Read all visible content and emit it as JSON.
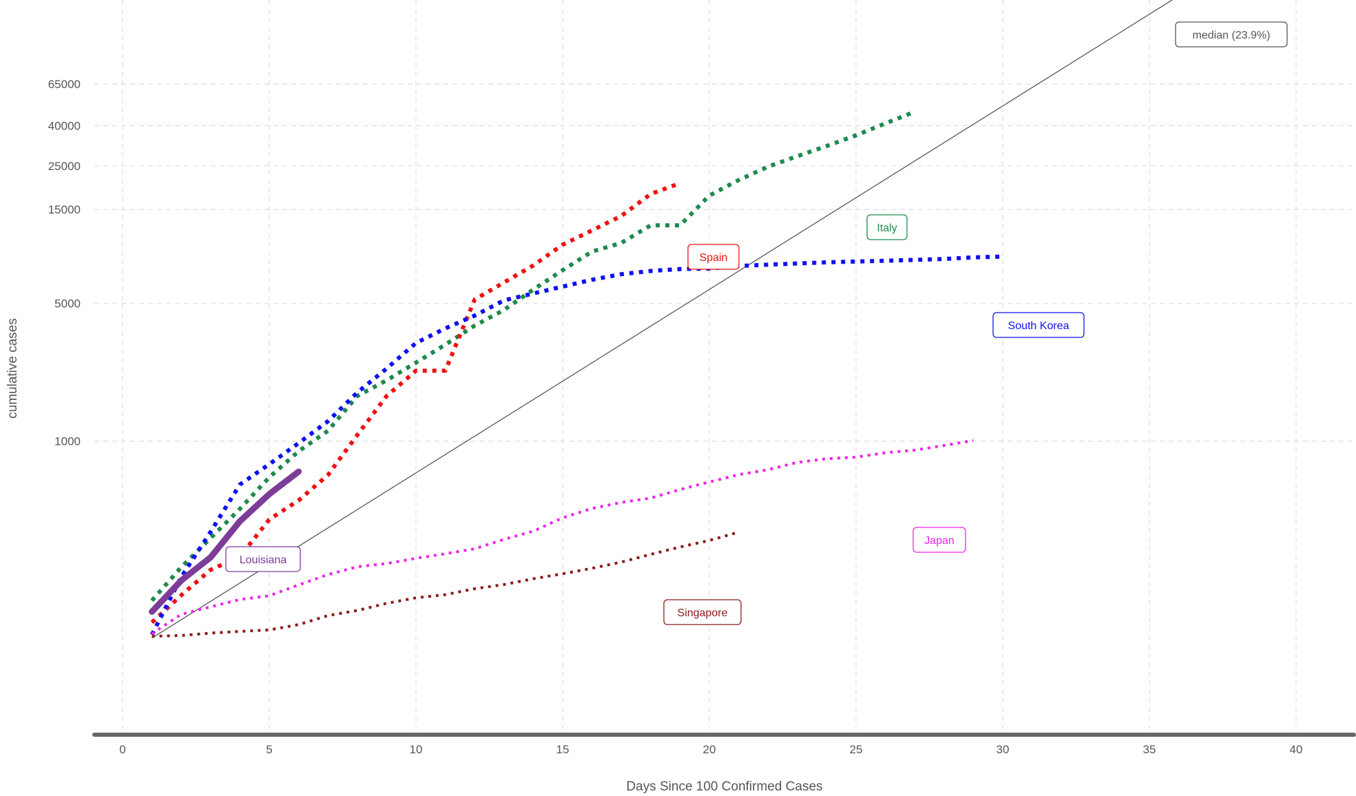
{
  "chart_data": {
    "type": "line",
    "title": "",
    "xlabel": "Days Since 100 Confirmed Cases",
    "ylabel": "cumulative cases",
    "y_scale": "log",
    "xlim": [
      -3.5,
      42
    ],
    "ylim": [
      90,
      1000000
    ],
    "grid": true,
    "x_ticks": [
      0,
      5,
      10,
      15,
      20,
      25,
      30,
      35,
      40
    ],
    "y_ticks": [
      1000,
      5000,
      15000,
      25000,
      40000,
      65000
    ],
    "y_tick_labels": [
      "1000",
      "5000",
      "15000",
      "25000",
      "40000",
      "65000"
    ],
    "series": [
      {
        "name": "Italy",
        "color": "#1e8a4e",
        "style": "dotted",
        "width": 6,
        "x": [
          1,
          2,
          3,
          4,
          5,
          6,
          7,
          8,
          9,
          10,
          11,
          12,
          13,
          14,
          15,
          16,
          17,
          18,
          19,
          20,
          21,
          22,
          23,
          24,
          25,
          26,
          27
        ],
        "y": [
          155,
          229,
          322,
          453,
          655,
          888,
          1128,
          1694,
          2036,
          2502,
          3089,
          3858,
          4636,
          5883,
          7375,
          9172,
          10149,
          12462,
          12462,
          17660,
          21157,
          24747,
          27980,
          31506,
          35713,
          41035,
          47021
        ]
      },
      {
        "name": "Spain",
        "color": "#ee1111",
        "style": "dotted",
        "width": 6,
        "x": [
          1,
          2,
          3,
          4,
          5,
          6,
          7,
          8,
          9,
          10,
          11,
          12,
          13,
          14,
          15,
          16,
          17,
          18,
          19
        ],
        "y": [
          120,
          165,
          222,
          259,
          400,
          500,
          673,
          1073,
          1695,
          2277,
          2277,
          5232,
          6391,
          7798,
          9942,
          11748,
          13910,
          17963,
          20410
        ]
      },
      {
        "name": "South Korea",
        "color": "#1010ee",
        "style": "dotted",
        "width": 6,
        "x": [
          1,
          2,
          3,
          4,
          5,
          6,
          7,
          8,
          9,
          10,
          11,
          12,
          13,
          14,
          15,
          16,
          17,
          18,
          19,
          20,
          21,
          22,
          23,
          24,
          25,
          26,
          27,
          28,
          29,
          30
        ],
        "y": [
          104,
          204,
          346,
          602,
          763,
          977,
          1261,
          1766,
          2337,
          3150,
          3736,
          4335,
          5186,
          5621,
          6088,
          6593,
          7041,
          7313,
          7478,
          7513,
          7755,
          7869,
          7979,
          8086,
          8162,
          8236,
          8320,
          8413,
          8565,
          8652
        ]
      },
      {
        "name": "Japan",
        "color": "#ee22ee",
        "style": "dotted",
        "width": 4,
        "x": [
          1,
          2,
          3,
          4,
          5,
          6,
          7,
          8,
          9,
          10,
          11,
          12,
          13,
          14,
          15,
          16,
          17,
          18,
          19,
          20,
          21,
          22,
          23,
          24,
          25,
          26,
          27,
          28,
          29
        ],
        "y": [
          105,
          132,
          144,
          157,
          164,
          186,
          210,
          230,
          239,
          254,
          268,
          284,
          317,
          349,
          408,
          455,
          488,
          514,
          568,
          620,
          675,
          716,
          780,
          814,
          829,
          873,
          900,
          950,
          1007
        ]
      },
      {
        "name": "Singapore",
        "color": "#8b1a1a",
        "style": "dotted",
        "width": 4,
        "x": [
          1,
          2,
          3,
          4,
          5,
          6,
          7,
          8,
          9,
          10,
          11,
          12,
          13,
          14,
          15,
          16,
          17,
          18,
          19,
          20,
          21
        ],
        "y": [
          102,
          103,
          106,
          108,
          110,
          117,
          130,
          138,
          150,
          160,
          166,
          178,
          187,
          200,
          212,
          226,
          243,
          266,
          290,
          313,
          345
        ]
      },
      {
        "name": "Louisiana",
        "color": "#7d3c98",
        "style": "solid",
        "width": 9,
        "x": [
          1,
          2,
          3,
          4,
          5,
          6
        ],
        "y": [
          136,
          196,
          257,
          392,
          538,
          700
        ]
      }
    ],
    "reference_line": {
      "name": "median (23.9%)",
      "x": [
        1,
        40
      ],
      "y": [
        100,
        430000
      ]
    }
  }
}
